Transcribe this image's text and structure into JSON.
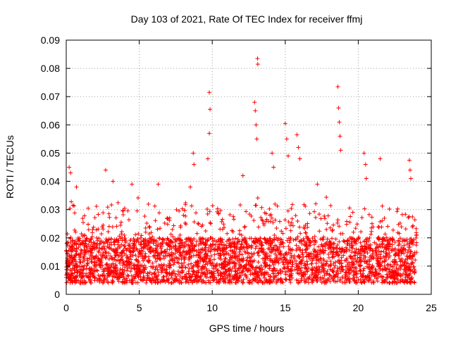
{
  "chart_data": {
    "type": "scatter",
    "title": "Day 103 of 2021, Rate Of TEC Index for receiver ffmj",
    "xlabel": "GPS time / hours",
    "ylabel": "ROTI / TECUs",
    "xlim": [
      0,
      25
    ],
    "ylim": [
      0,
      0.09
    ],
    "xticks": [
      0,
      5,
      10,
      15,
      20,
      25
    ],
    "xtick_labels": [
      "0",
      "5",
      "10",
      "15",
      "20",
      "25"
    ],
    "yticks": [
      0,
      0.01,
      0.02,
      0.03,
      0.04,
      0.05,
      0.06,
      0.07,
      0.08,
      0.09
    ],
    "ytick_labels": [
      "0",
      "0.01",
      "0.02",
      "0.03",
      "0.04",
      "0.05",
      "0.06",
      "0.07",
      "0.08",
      "0.09"
    ],
    "grid": true,
    "marker": "+",
    "color": "#ff0000",
    "series": [
      {
        "name": "ROTI",
        "x_range": [
          0,
          24
        ],
        "typical_range": [
          0.004,
          0.02
        ],
        "dense_upper_envelope": [
          [
            0,
            0.025
          ],
          [
            0.3,
            0.035
          ],
          [
            1,
            0.028
          ],
          [
            2,
            0.033
          ],
          [
            3,
            0.035
          ],
          [
            4,
            0.033
          ],
          [
            5,
            0.035
          ],
          [
            6,
            0.032
          ],
          [
            7,
            0.027
          ],
          [
            8,
            0.035
          ],
          [
            9,
            0.03
          ],
          [
            10,
            0.033
          ],
          [
            11,
            0.03
          ],
          [
            12,
            0.032
          ],
          [
            13,
            0.035
          ],
          [
            14,
            0.033
          ],
          [
            15,
            0.03
          ],
          [
            16,
            0.035
          ],
          [
            17,
            0.032
          ],
          [
            18,
            0.035
          ],
          [
            19,
            0.032
          ],
          [
            20,
            0.03
          ],
          [
            21,
            0.033
          ],
          [
            22,
            0.032
          ],
          [
            23,
            0.03
          ],
          [
            24,
            0.028
          ]
        ],
        "spikes": [
          {
            "x": 0.2,
            "y": 0.045
          },
          {
            "x": 0.3,
            "y": 0.043
          },
          {
            "x": 0.7,
            "y": 0.038
          },
          {
            "x": 2.7,
            "y": 0.044
          },
          {
            "x": 3.2,
            "y": 0.04
          },
          {
            "x": 4.5,
            "y": 0.039
          },
          {
            "x": 6.3,
            "y": 0.039
          },
          {
            "x": 8.5,
            "y": 0.038
          },
          {
            "x": 8.7,
            "y": 0.05
          },
          {
            "x": 8.75,
            "y": 0.046
          },
          {
            "x": 9.8,
            "y": 0.0715
          },
          {
            "x": 9.85,
            "y": 0.0655
          },
          {
            "x": 9.8,
            "y": 0.057
          },
          {
            "x": 9.7,
            "y": 0.048
          },
          {
            "x": 12.1,
            "y": 0.042
          },
          {
            "x": 12.9,
            "y": 0.068
          },
          {
            "x": 12.95,
            "y": 0.065
          },
          {
            "x": 13.0,
            "y": 0.06
          },
          {
            "x": 13.05,
            "y": 0.055
          },
          {
            "x": 13.1,
            "y": 0.0835
          },
          {
            "x": 13.12,
            "y": 0.0815
          },
          {
            "x": 14.1,
            "y": 0.05
          },
          {
            "x": 14.2,
            "y": 0.045
          },
          {
            "x": 15.0,
            "y": 0.0605
          },
          {
            "x": 15.1,
            "y": 0.055
          },
          {
            "x": 15.2,
            "y": 0.049
          },
          {
            "x": 15.8,
            "y": 0.0565
          },
          {
            "x": 15.9,
            "y": 0.052
          },
          {
            "x": 16.0,
            "y": 0.048
          },
          {
            "x": 17.2,
            "y": 0.039
          },
          {
            "x": 18.6,
            "y": 0.0735
          },
          {
            "x": 18.65,
            "y": 0.066
          },
          {
            "x": 18.7,
            "y": 0.061
          },
          {
            "x": 18.75,
            "y": 0.056
          },
          {
            "x": 18.8,
            "y": 0.051
          },
          {
            "x": 20.4,
            "y": 0.05
          },
          {
            "x": 20.5,
            "y": 0.046
          },
          {
            "x": 20.55,
            "y": 0.041
          },
          {
            "x": 21.5,
            "y": 0.048
          },
          {
            "x": 23.5,
            "y": 0.0475
          },
          {
            "x": 23.55,
            "y": 0.044
          },
          {
            "x": 23.6,
            "y": 0.041
          }
        ]
      }
    ]
  }
}
